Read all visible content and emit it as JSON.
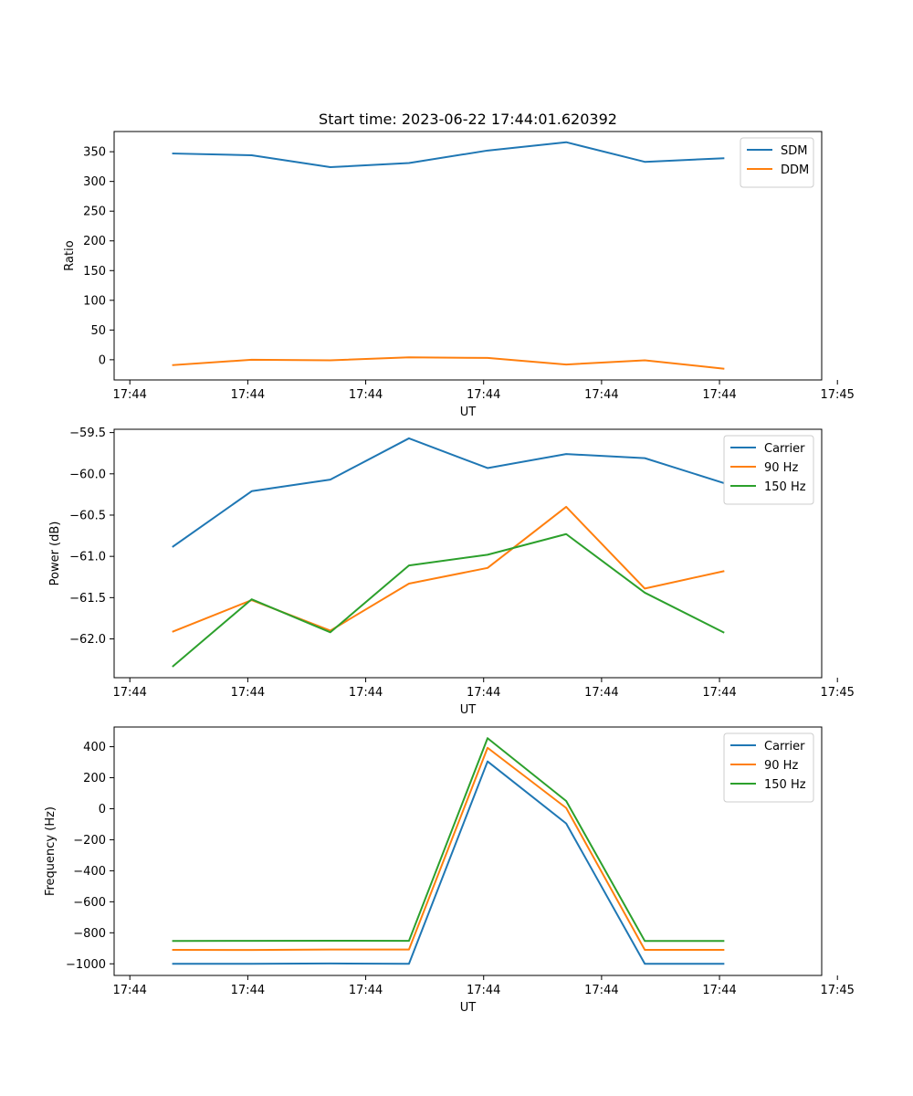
{
  "figure": {
    "title": "Start time: 2023-06-22 17:44:01.620392"
  },
  "chart_data": [
    {
      "type": "line",
      "title": "Start time: 2023-06-22 17:44:01.620392",
      "xlabel": "UT",
      "ylabel": "Ratio",
      "x": [
        1,
        2,
        3,
        4,
        5,
        6,
        7,
        8
      ],
      "xlim": [
        0.25,
        9.25
      ],
      "x_ticks": [
        0.45,
        1.95,
        3.45,
        4.95,
        6.45,
        7.95,
        9.45
      ],
      "x_tick_labels": [
        "17:44",
        "17:44",
        "17:44",
        "17:44",
        "17:44",
        "17:44",
        "17:45"
      ],
      "ylim": [
        -34,
        384
      ],
      "y_ticks": [
        0,
        50,
        100,
        150,
        200,
        250,
        300,
        350
      ],
      "y_tick_labels": [
        "0",
        "50",
        "100",
        "150",
        "200",
        "250",
        "300",
        "350"
      ],
      "legend": "top-right",
      "grid": false,
      "series": [
        {
          "name": "SDM",
          "color": "#1f77b4",
          "values": [
            347,
            344,
            324,
            331,
            352,
            366,
            333,
            339
          ]
        },
        {
          "name": "DDM",
          "color": "#ff7f0e",
          "values": [
            -9,
            0,
            -1,
            4,
            3,
            -8,
            -1,
            -15
          ]
        }
      ]
    },
    {
      "type": "line",
      "xlabel": "UT",
      "ylabel": "Power (dB)",
      "x": [
        1,
        2,
        3,
        4,
        5,
        6,
        7,
        8
      ],
      "xlim": [
        0.25,
        9.25
      ],
      "x_ticks": [
        0.45,
        1.95,
        3.45,
        4.95,
        6.45,
        7.95,
        9.45
      ],
      "x_tick_labels": [
        "17:44",
        "17:44",
        "17:44",
        "17:44",
        "17:44",
        "17:44",
        "17:45"
      ],
      "ylim": [
        -62.47,
        -59.46
      ],
      "y_ticks": [
        -62.0,
        -61.5,
        -61.0,
        -60.5,
        -60.0,
        -59.5
      ],
      "y_tick_labels": [
        "−62.0",
        "−61.5",
        "−61.0",
        "−60.5",
        "−60.0",
        "−59.5"
      ],
      "legend": "top-right",
      "grid": false,
      "series": [
        {
          "name": "Carrier",
          "color": "#1f77b4",
          "values": [
            -60.88,
            -60.21,
            -60.07,
            -59.57,
            -59.93,
            -59.76,
            -59.81,
            -60.11
          ]
        },
        {
          "name": "90 Hz",
          "color": "#ff7f0e",
          "values": [
            -61.91,
            -61.53,
            -61.9,
            -61.33,
            -61.14,
            -60.4,
            -61.39,
            -61.18
          ]
        },
        {
          "name": "150 Hz",
          "color": "#2ca02c",
          "values": [
            -62.33,
            -61.52,
            -61.92,
            -61.11,
            -60.98,
            -60.73,
            -61.44,
            -61.92
          ]
        }
      ]
    },
    {
      "type": "line",
      "xlabel": "UT",
      "ylabel": "Frequency (Hz)",
      "x": [
        1,
        2,
        3,
        4,
        5,
        6,
        7,
        8
      ],
      "xlim": [
        0.25,
        9.25
      ],
      "x_ticks": [
        0.45,
        1.95,
        3.45,
        4.95,
        6.45,
        7.95,
        9.45
      ],
      "x_tick_labels": [
        "17:44",
        "17:44",
        "17:44",
        "17:44",
        "17:44",
        "17:44",
        "17:45"
      ],
      "ylim": [
        -1075,
        527
      ],
      "y_ticks": [
        -1000,
        -800,
        -600,
        -400,
        -200,
        0,
        200,
        400
      ],
      "y_tick_labels": [
        "−1000",
        "−800",
        "−600",
        "−400",
        "−200",
        "0",
        "200",
        "400"
      ],
      "legend": "top-right",
      "grid": false,
      "series": [
        {
          "name": "Carrier",
          "color": "#1f77b4",
          "values": [
            -1000,
            -1000,
            -998,
            -1000,
            305,
            -95,
            -1000,
            -1000
          ]
        },
        {
          "name": "90 Hz",
          "color": "#ff7f0e",
          "values": [
            -910,
            -911,
            -908,
            -908,
            393,
            5,
            -910,
            -910
          ]
        },
        {
          "name": "150 Hz",
          "color": "#2ca02c",
          "values": [
            -853,
            -852,
            -851,
            -852,
            455,
            50,
            -853,
            -853
          ]
        }
      ]
    }
  ]
}
